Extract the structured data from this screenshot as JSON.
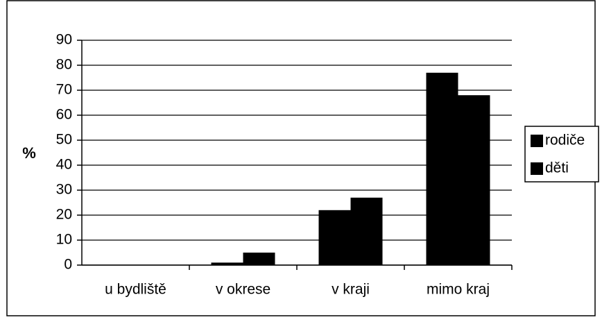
{
  "chart_data": {
    "type": "bar",
    "categories": [
      "u bydliště",
      "v okrese",
      "v kraji",
      "mimo kraj"
    ],
    "series": [
      {
        "name": "rodiče",
        "color": "#000000",
        "values": [
          0,
          1,
          22,
          77
        ]
      },
      {
        "name": "děti",
        "color": "#000000",
        "values": [
          0,
          5,
          27,
          68
        ]
      }
    ],
    "y_label": "%",
    "ylim": [
      0,
      90
    ],
    "yticks": [
      0,
      10,
      20,
      30,
      40,
      50,
      60,
      70,
      80,
      90
    ],
    "grid": true,
    "legend": "right"
  }
}
